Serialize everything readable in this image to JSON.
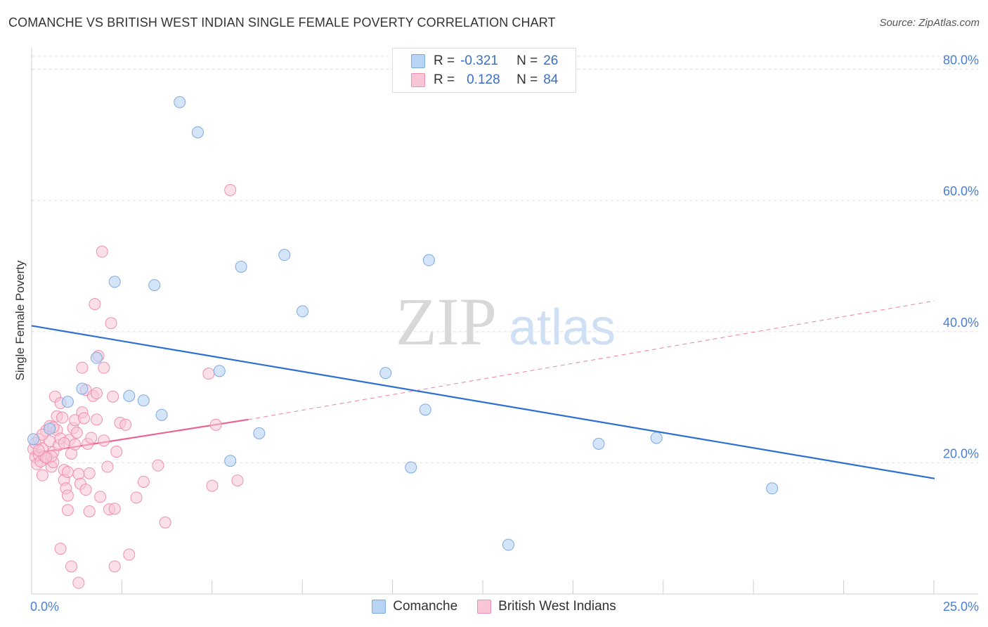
{
  "header": {
    "title": "COMANCHE VS BRITISH WEST INDIAN SINGLE FEMALE POVERTY CORRELATION CHART",
    "source": "Source: ZipAtlas.com"
  },
  "watermark": {
    "zip": "ZIP",
    "atlas": "atlas"
  },
  "legend": {
    "rows": [
      {
        "r_label": "R =",
        "r_value": "-0.321",
        "n_label": "N =",
        "n_value": "26"
      },
      {
        "r_label": "R =",
        "r_value": "0.128",
        "n_label": "N =",
        "n_value": "84"
      }
    ]
  },
  "colors": {
    "comanche_fill": "#b8d4f5",
    "comanche_stroke": "#7ea9df",
    "comanche_line": "#2b6fd1",
    "bwi_fill": "#f8c6d6",
    "bwi_stroke": "#ef8fb0",
    "bwi_line": "#e8638e",
    "axis_text": "#4a7fd4",
    "grid": "#dddddd"
  },
  "chart_data": {
    "type": "scatter",
    "title": "COMANCHE VS BRITISH WEST INDIAN SINGLE FEMALE POVERTY CORRELATION CHART",
    "xlabel": "",
    "ylabel": "Single Female Poverty",
    "xlim": [
      0,
      25
    ],
    "ylim": [
      0,
      82
    ],
    "x_tick_labels": [
      "0.0%",
      "25.0%"
    ],
    "y_ticks": [
      20,
      40,
      60,
      80
    ],
    "y_tick_labels": [
      "20.0%",
      "40.0%",
      "60.0%",
      "80.0%"
    ],
    "grid": true,
    "legend_position": "top-center",
    "series": [
      {
        "name": "Comanche",
        "r": -0.321,
        "n": 26,
        "trend": {
          "x": [
            0,
            25
          ],
          "y": [
            40.9,
            17.6
          ],
          "style": "solid"
        },
        "points": [
          [
            0.05,
            23.6
          ],
          [
            0.5,
            25.2
          ],
          [
            1.0,
            29.3
          ],
          [
            1.4,
            31.3
          ],
          [
            1.8,
            36.0
          ],
          [
            2.3,
            47.6
          ],
          [
            2.7,
            30.2
          ],
          [
            3.1,
            29.5
          ],
          [
            3.4,
            47.1
          ],
          [
            3.6,
            27.3
          ],
          [
            4.1,
            75.0
          ],
          [
            4.6,
            70.4
          ],
          [
            5.2,
            34.0
          ],
          [
            5.5,
            20.3
          ],
          [
            5.8,
            49.9
          ],
          [
            6.3,
            24.5
          ],
          [
            7.0,
            51.7
          ],
          [
            7.5,
            43.1
          ],
          [
            9.8,
            33.7
          ],
          [
            10.5,
            19.3
          ],
          [
            10.9,
            28.1
          ],
          [
            11.0,
            50.9
          ],
          [
            13.2,
            7.5
          ],
          [
            15.7,
            22.9
          ],
          [
            17.3,
            23.8
          ],
          [
            20.5,
            16.1
          ]
        ]
      },
      {
        "name": "British West Indians",
        "r": 0.128,
        "n": 84,
        "trend": {
          "x": [
            0,
            6.0
          ],
          "y": [
            21.4,
            26.6
          ],
          "style": "solid"
        },
        "trend_extended": {
          "x": [
            6.0,
            25
          ],
          "y": [
            26.6,
            44.7
          ],
          "style": "dashed"
        },
        "points": [
          [
            0.05,
            22.1
          ],
          [
            0.1,
            23.0
          ],
          [
            0.1,
            20.9
          ],
          [
            0.15,
            19.8
          ],
          [
            0.2,
            21.2
          ],
          [
            0.2,
            23.6
          ],
          [
            0.25,
            20.2
          ],
          [
            0.3,
            22.2
          ],
          [
            0.3,
            18.1
          ],
          [
            0.35,
            21.0
          ],
          [
            0.4,
            24.9
          ],
          [
            0.45,
            20.7
          ],
          [
            0.5,
            25.6
          ],
          [
            0.5,
            23.3
          ],
          [
            0.55,
            19.4
          ],
          [
            0.6,
            21.6
          ],
          [
            0.6,
            20.1
          ],
          [
            0.65,
            30.1
          ],
          [
            0.7,
            27.1
          ],
          [
            0.7,
            25.0
          ],
          [
            0.75,
            22.7
          ],
          [
            0.8,
            23.7
          ],
          [
            0.8,
            29.1
          ],
          [
            0.85,
            26.9
          ],
          [
            0.9,
            18.9
          ],
          [
            0.9,
            17.4
          ],
          [
            0.95,
            16.1
          ],
          [
            1.0,
            15.0
          ],
          [
            1.0,
            12.8
          ],
          [
            1.05,
            23.5
          ],
          [
            1.1,
            21.4
          ],
          [
            1.15,
            25.3
          ],
          [
            1.2,
            22.8
          ],
          [
            1.2,
            26.5
          ],
          [
            1.25,
            24.6
          ],
          [
            1.3,
            18.3
          ],
          [
            1.35,
            16.8
          ],
          [
            1.4,
            27.7
          ],
          [
            1.4,
            34.5
          ],
          [
            1.45,
            26.8
          ],
          [
            1.5,
            31.1
          ],
          [
            1.5,
            15.9
          ],
          [
            1.55,
            22.9
          ],
          [
            1.6,
            18.4
          ],
          [
            1.65,
            23.8
          ],
          [
            1.7,
            30.2
          ],
          [
            1.75,
            44.2
          ],
          [
            1.8,
            26.6
          ],
          [
            1.85,
            36.3
          ],
          [
            1.9,
            14.8
          ],
          [
            1.95,
            52.2
          ],
          [
            2.0,
            23.4
          ],
          [
            2.0,
            34.5
          ],
          [
            2.1,
            19.4
          ],
          [
            2.15,
            12.9
          ],
          [
            2.2,
            41.3
          ],
          [
            2.25,
            30.1
          ],
          [
            2.3,
            13.0
          ],
          [
            2.35,
            21.7
          ],
          [
            2.45,
            26.1
          ],
          [
            2.6,
            25.8
          ],
          [
            2.7,
            6.0
          ],
          [
            2.9,
            14.7
          ],
          [
            3.1,
            17.1
          ],
          [
            3.5,
            19.6
          ],
          [
            3.7,
            10.9
          ],
          [
            4.9,
            33.6
          ],
          [
            5.0,
            16.5
          ],
          [
            5.1,
            25.8
          ],
          [
            5.5,
            61.6
          ],
          [
            5.7,
            17.3
          ],
          [
            0.8,
            6.9
          ],
          [
            1.1,
            4.2
          ],
          [
            1.3,
            1.7
          ],
          [
            2.3,
            4.2
          ],
          [
            1.6,
            12.6
          ],
          [
            0.55,
            21.0
          ],
          [
            0.4,
            20.8
          ],
          [
            0.3,
            24.3
          ],
          [
            0.9,
            23.0
          ],
          [
            1.0,
            18.6
          ],
          [
            1.8,
            30.6
          ],
          [
            0.2,
            21.9
          ],
          [
            0.6,
            25.4
          ]
        ]
      }
    ]
  },
  "bottom_legend": {
    "items": [
      {
        "label": "Comanche"
      },
      {
        "label": "British West Indians"
      }
    ]
  }
}
